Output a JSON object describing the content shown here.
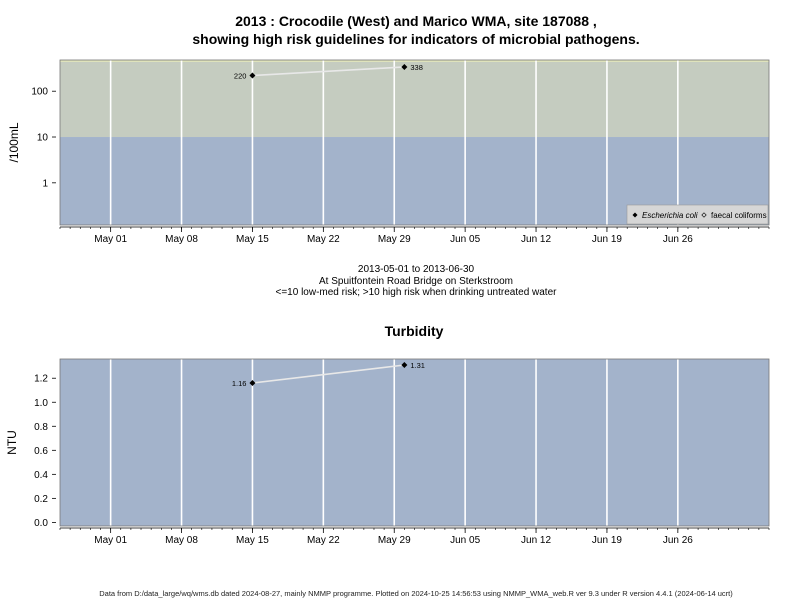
{
  "header": {
    "title_line1": "2013 : Crocodile (West) and Marico WMA, site 187088 ,",
    "title_line2": "showing high risk guidelines for indicators of microbial pathogens."
  },
  "caption": {
    "line1": "2013-05-01 to 2013-06-30",
    "line2": "At Spuitfontein Road Bridge on Sterkstroom",
    "line3": "<=10 low-med risk; >10 high risk when drinking untreated water"
  },
  "footer": {
    "text": "Data from D:/data_large/wq/wms.db dated 2024-08-27, mainly NMMP programme. Plotted on 2024-10-25 14:56:53 using NMMP_WMA_web.R ver 9.3 under R version 4.4.1 (2024-06-14 ucrt)"
  },
  "colors": {
    "low_risk_band": "#a3b3cb",
    "high_risk_band": "#c5ccc0",
    "top_band": "#dfe3bc",
    "grid": "#ffffff",
    "series_line": "#e8e8e8",
    "marker": "#000000"
  },
  "chart_data": [
    {
      "type": "line",
      "title": "",
      "xlabel": "",
      "ylabel": "/100mL",
      "yscale": "log",
      "ylim": [
        0.12,
        480
      ],
      "xlim": [
        "2013-04-26",
        "2013-07-05"
      ],
      "x_ticks": [
        "May 01",
        "May 08",
        "May 15",
        "May 22",
        "May 29",
        "Jun 05",
        "Jun 12",
        "Jun 19",
        "Jun 26"
      ],
      "y_ticks": [
        1,
        10,
        100
      ],
      "y_tick_labels": [
        "1",
        "10",
        "100"
      ],
      "bands": [
        {
          "from": 0.12,
          "to": 10,
          "meaning": "low-med risk"
        },
        {
          "from": 10,
          "to": 480,
          "meaning": "high risk"
        }
      ],
      "grid": "vertical",
      "legend_position": "bottom-right",
      "legend": [
        "Escherichia coli",
        "faecal coliforms"
      ],
      "series": [
        {
          "name": "Escherichia coli",
          "marker": "filled-diamond",
          "x": [
            "2013-05-15",
            "2013-05-30"
          ],
          "y": [
            220,
            338
          ],
          "labels": [
            "220",
            "338"
          ]
        }
      ]
    },
    {
      "type": "line",
      "title": "Turbidity",
      "xlabel": "",
      "ylabel": "NTU",
      "yscale": "linear",
      "ylim": [
        -0.03,
        1.36
      ],
      "xlim": [
        "2013-04-26",
        "2013-07-05"
      ],
      "x_ticks": [
        "May 01",
        "May 08",
        "May 15",
        "May 22",
        "May 29",
        "Jun 05",
        "Jun 12",
        "Jun 19",
        "Jun 26"
      ],
      "y_ticks": [
        0.0,
        0.2,
        0.4,
        0.6,
        0.8,
        1.0,
        1.2
      ],
      "y_tick_labels": [
        "0.0",
        "0.2",
        "0.4",
        "0.6",
        "0.8",
        "1.0",
        "1.2"
      ],
      "grid": "vertical",
      "series": [
        {
          "marker": "filled-diamond",
          "x": [
            "2013-05-15",
            "2013-05-30"
          ],
          "y": [
            1.16,
            1.31
          ],
          "labels": [
            "1.16",
            "1.31"
          ]
        }
      ]
    }
  ]
}
